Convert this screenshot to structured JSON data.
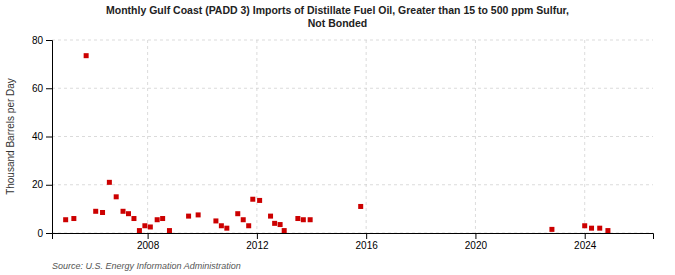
{
  "chart_data": {
    "type": "scatter",
    "title": "Monthly Gulf Coast (PADD 3) Imports of Distillate Fuel Oil, Greater than 15 to 500 ppm Sulfur,\nNot Bonded",
    "ylabel": "Thousand Barrels per Day",
    "annotations": [
      "Source: U.S. Energy Information Administration"
    ],
    "color": "#cc0000",
    "marker": "square",
    "grid": true,
    "xlim": [
      2004.5,
      2026.5
    ],
    "xticks": [
      2008,
      2012,
      2016,
      2020,
      2024
    ],
    "ylim": [
      0,
      80
    ],
    "yticks": [
      0,
      20,
      40,
      60,
      80
    ],
    "x": [
      2005.0,
      2005.3,
      2005.75,
      2006.1,
      2006.35,
      2006.6,
      2006.85,
      2007.1,
      2007.3,
      2007.5,
      2007.7,
      2007.9,
      2008.1,
      2008.35,
      2008.55,
      2008.8,
      2009.5,
      2009.85,
      2010.5,
      2010.7,
      2010.9,
      2011.3,
      2011.5,
      2011.7,
      2011.85,
      2012.1,
      2012.5,
      2012.65,
      2012.85,
      2013.0,
      2013.5,
      2013.7,
      2013.95,
      2015.8,
      2022.8,
      2024.0,
      2024.25,
      2024.55,
      2024.85
    ],
    "values": [
      5.5,
      6.0,
      73.5,
      9.0,
      8.5,
      21.0,
      15.0,
      9.0,
      8.0,
      6.0,
      1.0,
      3.0,
      2.5,
      5.5,
      6.0,
      1.0,
      7.0,
      7.5,
      5.0,
      3.0,
      2.0,
      8.0,
      5.5,
      3.0,
      14.0,
      13.5,
      7.0,
      4.0,
      3.5,
      1.0,
      6.0,
      5.5,
      5.5,
      11.0,
      1.5,
      3.0,
      2.0,
      2.0,
      1.0
    ]
  }
}
